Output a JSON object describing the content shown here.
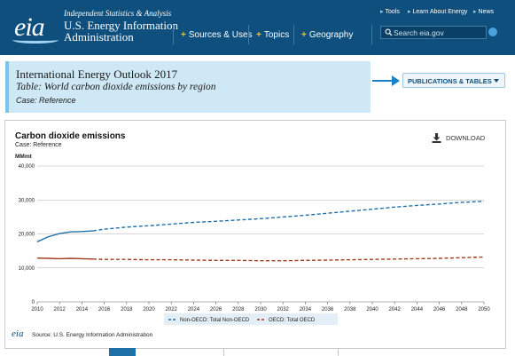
{
  "header": {
    "logo_text": "eia",
    "tagline": "Independent Statistics & Analysis",
    "agency_name": "U.S. Energy Information Administration",
    "nav": [
      {
        "label": "Sources & Uses"
      },
      {
        "label": "Topics"
      },
      {
        "label": "Geography"
      }
    ],
    "utility_links": [
      {
        "label": "Tools"
      },
      {
        "label": "Learn About Energy"
      },
      {
        "label": "News"
      }
    ],
    "search": {
      "placeholder": "Search eia.gov"
    }
  },
  "title_panel": {
    "title": "International Energy Outlook 2017",
    "table": "Table: World carbon dioxide emissions by region",
    "case": "Case: Reference"
  },
  "publications_button": {
    "label": "PUBLICATIONS & TABLES"
  },
  "chart_panel": {
    "title": "Carbon dioxide emissions",
    "subtitle": "Case: Reference",
    "download_label": "DOWNLOAD",
    "source": "Source: U.S. Energy Information Administration",
    "source_logo": "eia"
  },
  "colors": {
    "header_bg": "#0e4f7d",
    "title_panel_bg": "#cfe8f6",
    "series_non_oecd": "#1f6fa8",
    "series_oecd": "#a23b1c",
    "gridline": "#b0b0b0",
    "arrow": "#1d7fc4"
  },
  "chart_data": {
    "type": "line",
    "title": "Carbon dioxide emissions",
    "subtitle": "Case: Reference",
    "ylabel": "MMmt",
    "xlabel": "",
    "ylim": [
      0,
      40000
    ],
    "yticks": [
      "0",
      "10,000",
      "20,000",
      "30,000",
      "40,000"
    ],
    "ytick_values": [
      0,
      10000,
      20000,
      30000,
      40000
    ],
    "xticks": [
      2010,
      2012,
      2014,
      2016,
      2018,
      2020,
      2022,
      2024,
      2026,
      2028,
      2030,
      2032,
      2034,
      2036,
      2038,
      2040,
      2042,
      2044,
      2046,
      2048,
      2050
    ],
    "xlim": [
      2010,
      2050
    ],
    "grid": true,
    "legend_position": "bottom",
    "history_end_year": 2015,
    "series": [
      {
        "name": "Non-OECD: Total Non-OECD",
        "color": "#1f6fa8",
        "points": [
          [
            2010,
            17700
          ],
          [
            2011,
            19200
          ],
          [
            2012,
            20100
          ],
          [
            2013,
            20600
          ],
          [
            2014,
            20700
          ],
          [
            2015,
            20900
          ],
          [
            2016,
            21400
          ],
          [
            2017,
            21700
          ],
          [
            2018,
            22000
          ],
          [
            2020,
            22400
          ],
          [
            2022,
            22900
          ],
          [
            2024,
            23400
          ],
          [
            2026,
            23700
          ],
          [
            2028,
            24100
          ],
          [
            2030,
            24500
          ],
          [
            2032,
            25000
          ],
          [
            2034,
            25500
          ],
          [
            2036,
            26100
          ],
          [
            2038,
            26700
          ],
          [
            2040,
            27300
          ],
          [
            2042,
            27900
          ],
          [
            2044,
            28400
          ],
          [
            2046,
            28800
          ],
          [
            2048,
            29300
          ],
          [
            2050,
            29600
          ]
        ]
      },
      {
        "name": "OECD: Total OECD",
        "color": "#a23b1c",
        "points": [
          [
            2010,
            12900
          ],
          [
            2011,
            12800
          ],
          [
            2012,
            12700
          ],
          [
            2013,
            12800
          ],
          [
            2014,
            12700
          ],
          [
            2015,
            12600
          ],
          [
            2016,
            12500
          ],
          [
            2018,
            12500
          ],
          [
            2020,
            12400
          ],
          [
            2022,
            12400
          ],
          [
            2024,
            12300
          ],
          [
            2026,
            12200
          ],
          [
            2028,
            12200
          ],
          [
            2030,
            12100
          ],
          [
            2032,
            12100
          ],
          [
            2034,
            12200
          ],
          [
            2036,
            12300
          ],
          [
            2038,
            12400
          ],
          [
            2040,
            12500
          ],
          [
            2042,
            12600
          ],
          [
            2044,
            12700
          ],
          [
            2046,
            12800
          ],
          [
            2048,
            13000
          ],
          [
            2050,
            13200
          ]
        ]
      }
    ]
  }
}
